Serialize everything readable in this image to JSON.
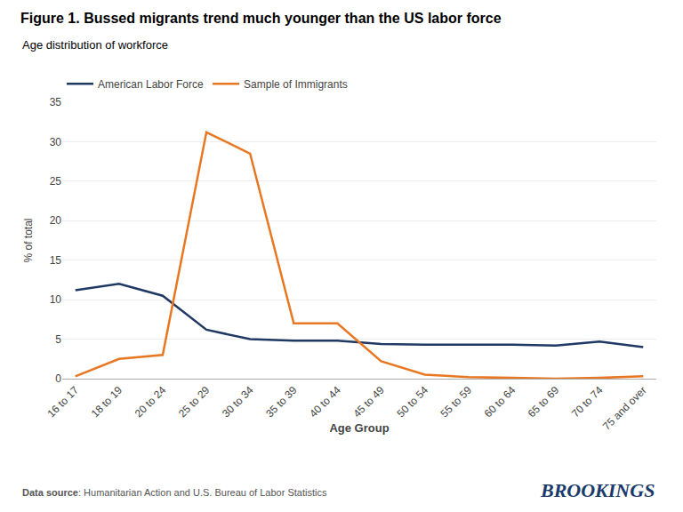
{
  "chart_data": {
    "type": "line",
    "title": "Figure 1. Bussed migrants trend much younger than the US labor force",
    "subtitle": "Age distribution of workforce",
    "x_label": "Age Group",
    "y_label": "% of total",
    "categories": [
      "16 to 17",
      "18 to 19",
      "20 to 24",
      "25 to 29",
      "30 to 34",
      "35 to 39",
      "40 to 44",
      "45 to 49",
      "50 to 54",
      "55 to 59",
      "60 to 64",
      "65 to 69",
      "70 to 74",
      "75 and over"
    ],
    "series": [
      {
        "name": "American Labor Force",
        "color": "#1f3864",
        "values": [
          11.2,
          12.0,
          10.5,
          6.2,
          5.0,
          4.8,
          4.8,
          4.4,
          4.3,
          4.3,
          4.3,
          4.2,
          4.7,
          4.0
        ]
      },
      {
        "name": "Sample of Immigrants",
        "color": "#e87722",
        "values": [
          0.3,
          2.5,
          3.0,
          31.2,
          28.5,
          7.0,
          7.0,
          2.2,
          0.5,
          0.2,
          0.1,
          0.0,
          0.1,
          0.3
        ]
      }
    ],
    "ylim": [
      0,
      35
    ],
    "yticks": [
      0,
      5,
      10,
      15,
      20,
      25,
      30,
      35
    ],
    "grid": true,
    "legend": "upper left",
    "footnote": [
      "Data source",
      ": Humanitarian Action and U.S. Bureau of Labor Statistics"
    ],
    "annotations": [
      {
        "text": "BROOKINGS",
        "color": "#1a3a6b"
      }
    ]
  }
}
